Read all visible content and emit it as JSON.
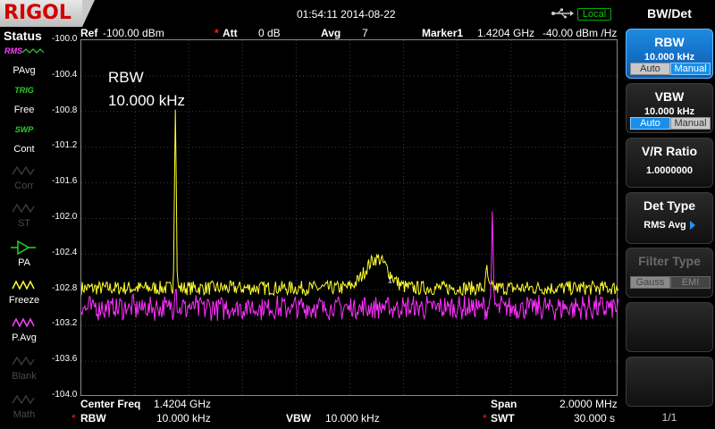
{
  "brand": "RIGOL",
  "datetime": "01:54:11 2014-08-22",
  "local_label": "Local",
  "status": {
    "title": "Status",
    "items": [
      {
        "top": "RMS",
        "bottom": "PAvg",
        "state": "on",
        "icon": "pavg-icon"
      },
      {
        "top": "TRIG",
        "bottom": "Free",
        "state": "on",
        "icon": "trig-icon"
      },
      {
        "top": "SWP",
        "bottom": "Cont",
        "state": "on",
        "icon": "sweep-icon"
      },
      {
        "top": "",
        "bottom": "Corr",
        "state": "off",
        "icon": "corr-icon"
      },
      {
        "top": "",
        "bottom": "ST",
        "state": "off",
        "icon": "st-icon"
      },
      {
        "top": "",
        "bottom": "PA",
        "state": "on",
        "icon": "pa-icon"
      },
      {
        "top": "",
        "bottom": "Freeze",
        "state": "on",
        "icon": "freeze-icon"
      },
      {
        "top": "",
        "bottom": "P.Avg",
        "state": "on",
        "icon": "pavg-trace-icon"
      },
      {
        "top": "",
        "bottom": "Blank",
        "state": "off",
        "icon": "blank-icon"
      },
      {
        "top": "",
        "bottom": "Math",
        "state": "off",
        "icon": "math-icon"
      }
    ]
  },
  "header": {
    "ref_label": "Ref",
    "ref_value": "-100.00 dBm",
    "att_label": "Att",
    "att_value": "0 dB",
    "avg_label": "Avg",
    "avg_value": "7",
    "marker_label": "Marker1",
    "marker_freq": "1.4204 GHz",
    "marker_value": "-40.00 dBm /Hz"
  },
  "annotation": {
    "line1": "RBW",
    "line2": "10.000 kHz"
  },
  "y_labels": [
    "-100.0",
    "-100.4",
    "-100.8",
    "-101.2",
    "-101.6",
    "-102.0",
    "-102.4",
    "-102.8",
    "-103.2",
    "-103.6",
    "-104.0"
  ],
  "marker_index": "1",
  "footer": {
    "center_label": "Center Freq",
    "center_value": "1.4204 GHz",
    "span_label": "Span",
    "span_value": "2.0000 MHz",
    "rbw_label": "RBW",
    "rbw_value": "10.000 kHz",
    "vbw_label": "VBW",
    "vbw_value": "10.000 kHz",
    "swt_label": "SWT",
    "swt_value": "30.000 s"
  },
  "menu": {
    "title": "BW/Det",
    "rbw": {
      "title": "RBW",
      "value": "10.000 kHz",
      "auto": "Auto",
      "manual": "Manual"
    },
    "vbw": {
      "title": "VBW",
      "value": "10.000 kHz",
      "auto": "Auto",
      "manual": "Manual"
    },
    "vr": {
      "title": "V/R Ratio",
      "value": "1.0000000"
    },
    "det": {
      "title": "Det Type",
      "value": "RMS Avg"
    },
    "filter": {
      "title": "Filter Type",
      "gauss": "Gauss",
      "emi": "EMI"
    },
    "page": "1/1"
  },
  "colors": {
    "trace_yellow": "#ffff30",
    "trace_magenta": "#ff30ff",
    "grid": "#3c3c3c",
    "accent": "#1a8fe8"
  },
  "chart_data": {
    "type": "line",
    "title": "",
    "xlabel": "",
    "ylabel": "",
    "ylim": [
      -104.0,
      -100.0
    ],
    "xlim": [
      1.4194,
      1.4214
    ],
    "x_unit": "GHz",
    "series": [
      {
        "name": "",
        "peaks": [
          [
            1.41975,
            -100.7
          ],
          [
            1.4205,
            -102.45
          ],
          [
            1.42091,
            -102.55
          ]
        ],
        "baseline": -102.78
      },
      {
        "name": "",
        "peaks": [
          [
            1.41975,
            -102.7
          ],
          [
            1.42093,
            -102.0
          ],
          [
            1.42157,
            -102.7
          ]
        ],
        "baseline": -103.0
      }
    ]
  }
}
